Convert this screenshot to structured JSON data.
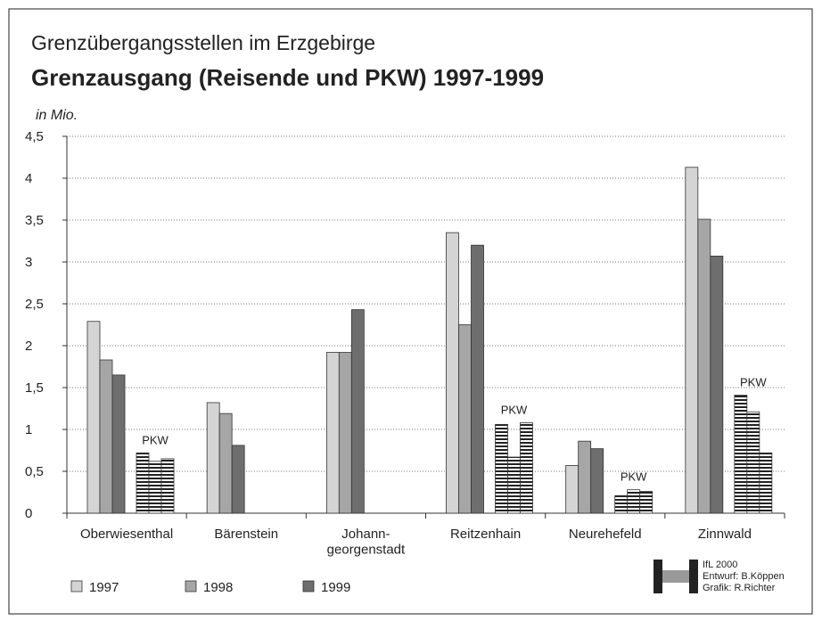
{
  "chart_data": {
    "type": "bar",
    "title": "Grenzübergangsstellen im Erzgebirge",
    "subtitle": "Grenzausgang (Reisende und PKW) 1997-1999",
    "y_label": "in Mio.",
    "categories": [
      "Oberwiesenthal",
      "Bärenstein",
      "Johann-\ngeorgenstadt",
      "Reitzenhain",
      "Neurehefeld",
      "Zinnwald"
    ],
    "series": [
      {
        "name": "1997",
        "color": "#d4d4d4",
        "values": [
          2.29,
          1.32,
          1.92,
          3.35,
          0.57,
          4.13
        ]
      },
      {
        "name": "1998",
        "color": "#a6a6a6",
        "values": [
          1.83,
          1.19,
          1.92,
          2.25,
          0.86,
          3.51
        ]
      },
      {
        "name": "1999",
        "color": "#6e6e6e",
        "values": [
          1.65,
          0.81,
          2.43,
          3.2,
          0.77,
          3.07
        ]
      }
    ],
    "pkw": {
      "label": "PKW",
      "series": [
        {
          "values": [
            0.72,
            null,
            null,
            1.06,
            0.21,
            1.41
          ]
        },
        {
          "values": [
            0.62,
            null,
            null,
            0.67,
            0.28,
            1.21
          ]
        },
        {
          "values": [
            0.65,
            null,
            null,
            1.08,
            0.26,
            0.72
          ]
        }
      ]
    },
    "ylim": [
      0,
      4.5
    ],
    "yticks": [
      0,
      {
        "value": 0.5,
        "label": "0,5"
      },
      1,
      {
        "value": 1.5,
        "label": "1,5"
      },
      2,
      {
        "value": 2.5,
        "label": "2,5"
      },
      3,
      {
        "value": 3.5,
        "label": "3,5"
      },
      4,
      {
        "value": 4.5,
        "label": "4,5"
      }
    ],
    "grid": true,
    "credits": [
      "IfL 2000",
      "Entwurf: B.Köppen",
      "Grafik: R.Richter"
    ]
  }
}
